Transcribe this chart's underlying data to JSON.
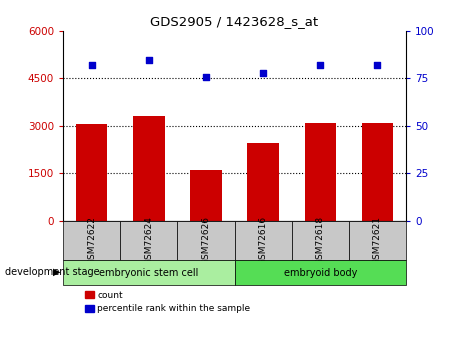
{
  "title": "GDS2905 / 1423628_s_at",
  "samples": [
    "GSM72622",
    "GSM72624",
    "GSM72626",
    "GSM72616",
    "GSM72618",
    "GSM72621"
  ],
  "counts": [
    3060,
    3300,
    1620,
    2450,
    3080,
    3090
  ],
  "percentile_ranks": [
    82,
    85,
    76,
    78,
    82,
    82
  ],
  "left_ylim": [
    0,
    6000
  ],
  "left_yticks": [
    0,
    1500,
    3000,
    4500,
    6000
  ],
  "right_ylim": [
    0,
    100
  ],
  "right_yticks": [
    0,
    25,
    50,
    75,
    100
  ],
  "bar_color": "#cc0000",
  "dot_color": "#0000cc",
  "group1_label": "embryonic stem cell",
  "group2_label": "embryoid body",
  "group1_color": "#aaeea0",
  "group2_color": "#55dd55",
  "group1_indices": [
    0,
    1,
    2
  ],
  "group2_indices": [
    3,
    4,
    5
  ],
  "stage_label": "development stage",
  "legend_count_label": "count",
  "legend_percentile_label": "percentile rank within the sample",
  "tick_label_color_left": "#cc0000",
  "tick_label_color_right": "#0000cc",
  "bar_width": 0.55,
  "dot_size": 22,
  "bg_color_plot": "#ffffff",
  "xtick_bg": "#c8c8c8"
}
